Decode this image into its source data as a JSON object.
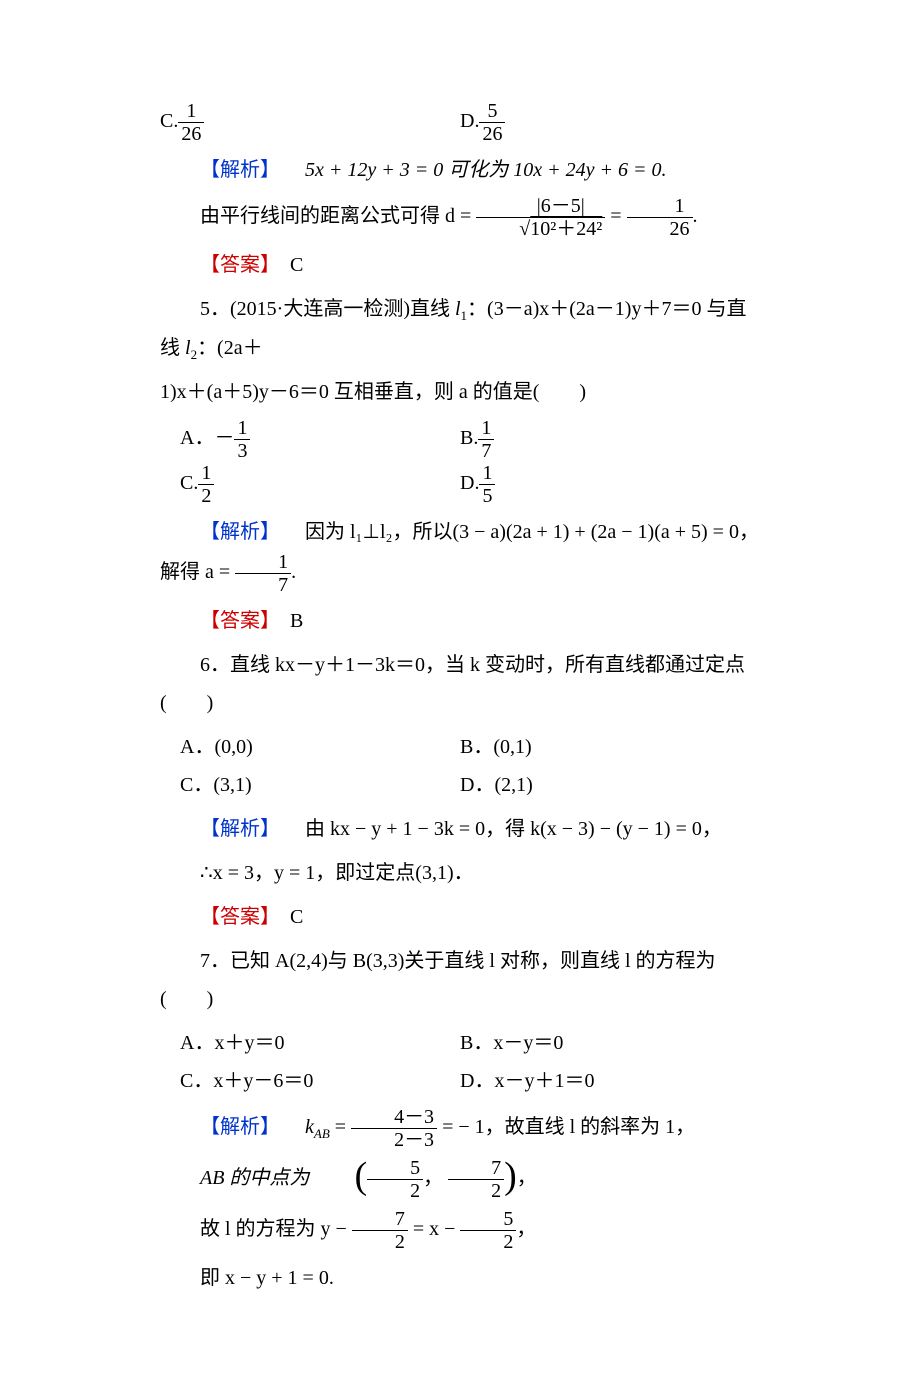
{
  "colors": {
    "analysis": "#0033cc",
    "answer": "#cc0000",
    "text": "#000000",
    "bg": "#ffffff"
  },
  "fonts": {
    "body_size": 20,
    "sub_size": 13
  },
  "q4": {
    "optC_label": "C.",
    "optC_num": "1",
    "optC_den": "26",
    "optD_label": "D.",
    "optD_num": "5",
    "optD_den": "26",
    "analysis_tag": "【解析】",
    "analysis_1": "5x + 12y + 3 = 0 可化为 10x + 24y + 6 = 0.",
    "analysis_2_pre": "由平行线间的距离公式可得 d =",
    "analysis_2_abs": "|6－5|",
    "analysis_2_sqrt": "10²＋24²",
    "analysis_2_eq": "=",
    "analysis_2_rnum": "1",
    "analysis_2_rden": "26",
    "analysis_2_dot": ".",
    "answer_tag": "【答案】",
    "answer": "C"
  },
  "q5": {
    "stem_1a": "5．(2015·大连高一检测)直线 ",
    "stem_1b": "l",
    "stem_1sub": "1",
    "stem_1c": "：(3－a)x＋(2a－1)y＋7＝0 与直线 ",
    "stem_1d": "l",
    "stem_1sub2": "2",
    "stem_1e": "：(2a＋",
    "stem_2": "1)x＋(a＋5)y－6＝0 互相垂直，则 a 的值是(　　)",
    "optA_label": "A．－",
    "optA_num": "1",
    "optA_den": "3",
    "optB_label": "B.",
    "optB_num": "1",
    "optB_den": "7",
    "optC_label": "C.",
    "optC_num": "1",
    "optC_den": "2",
    "optD_label": "D.",
    "optD_num": "1",
    "optD_den": "5",
    "analysis_tag": "【解析】",
    "analysis_a": "因为 l₁⊥l₂，所以(3 − a)(2a + 1) + (2a − 1)(a + 5) = 0，解得 a =",
    "analysis_rnum": "1",
    "analysis_rden": "7",
    "analysis_dot": ".",
    "answer_tag": "【答案】",
    "answer": "B"
  },
  "q6": {
    "stem": "6．直线 kx－y＋1－3k＝0，当 k 变动时，所有直线都通过定点(　　)",
    "optA": "A．(0,0)",
    "optB": "B．(0,1)",
    "optC": "C．(3,1)",
    "optD": "D．(2,1)",
    "analysis_tag": "【解析】",
    "analysis_1": "由 kx − y + 1 − 3k = 0，得 k(x − 3) − (y − 1) = 0，",
    "analysis_2": "∴x = 3，y = 1，即过定点(3,1)．",
    "answer_tag": "【答案】",
    "answer": "C"
  },
  "q7": {
    "stem": "7．已知 A(2,4)与 B(3,3)关于直线 l 对称，则直线 l 的方程为(　　)",
    "optA": "A．x＋y＝0",
    "optB": "B．x－y＝0",
    "optC": "C．x＋y－6＝0",
    "optD": "D．x－y＋1＝0",
    "analysis_tag": "【解析】",
    "analysis_1_a": "k",
    "analysis_1_sub": "AB",
    "analysis_1_b": " =",
    "analysis_1_num": "4－3",
    "analysis_1_den": "2－3",
    "analysis_1_c": "= − 1，故直线 l 的斜率为 1，",
    "analysis_2_a": "AB 的中点为",
    "analysis_2_p1": "5",
    "analysis_2_p1d": "2",
    "analysis_2_comma": "，",
    "analysis_2_p2": "7",
    "analysis_2_p2d": "2",
    "analysis_2_b": "，",
    "analysis_3_a": "故 l 的方程为 y −",
    "analysis_3_n1": "7",
    "analysis_3_d1": "2",
    "analysis_3_b": "= x −",
    "analysis_3_n2": "5",
    "analysis_3_d2": "2",
    "analysis_3_c": "，",
    "analysis_4": "即 x − y + 1 = 0."
  }
}
